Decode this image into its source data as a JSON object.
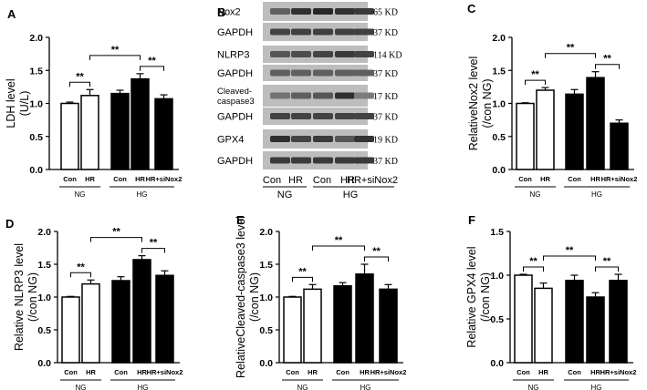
{
  "figure": {
    "panels": [
      "A",
      "B",
      "C",
      "D",
      "E",
      "F"
    ]
  },
  "blot": {
    "label": "B",
    "rows": [
      {
        "protein": "Nox2",
        "size": "65 KD",
        "intensity": [
          0.55,
          0.8,
          0.85,
          0.8,
          0.75
        ]
      },
      {
        "protein": "GAPDH",
        "size": "37 KD",
        "intensity": [
          0.7,
          0.72,
          0.72,
          0.72,
          0.72
        ]
      },
      {
        "protein": "NLRP3",
        "size": "114 KD",
        "intensity": [
          0.6,
          0.65,
          0.7,
          0.75,
          0.7
        ]
      },
      {
        "protein": "GAPDH",
        "size": "37 KD",
        "intensity": [
          0.55,
          0.55,
          0.55,
          0.55,
          0.55
        ]
      },
      {
        "protein": "Cleaved-\ncaspase3",
        "size": "17 KD",
        "intensity": [
          0.45,
          0.55,
          0.6,
          0.8,
          0.4
        ]
      },
      {
        "protein": "GAPDH",
        "size": "37 KD",
        "intensity": [
          0.7,
          0.7,
          0.7,
          0.7,
          0.7
        ]
      },
      {
        "protein": "GPX4",
        "size": "19 KD",
        "intensity": [
          0.8,
          0.7,
          0.75,
          0.6,
          0.78
        ]
      },
      {
        "protein": "GAPDH",
        "size": "37 KD",
        "intensity": [
          0.75,
          0.75,
          0.75,
          0.75,
          0.75
        ]
      }
    ],
    "lanes": [
      "Con",
      "HR",
      "Con",
      "HR",
      "HR+siNox2"
    ],
    "groups": [
      {
        "name": "NG"
      },
      {
        "name": "HG"
      }
    ]
  },
  "chart_data": [
    {
      "panel": "A",
      "type": "bar",
      "categories": [
        "Con",
        "HR",
        "Con",
        "HR",
        "HR+siNox2"
      ],
      "groups": [
        "NG",
        "HG"
      ],
      "values": [
        1.0,
        1.12,
        1.15,
        1.37,
        1.07
      ],
      "errors": [
        0.02,
        0.09,
        0.05,
        0.08,
        0.06
      ],
      "fill": [
        "#ffffff",
        "#ffffff",
        "#000000",
        "#000000",
        "#000000"
      ],
      "ylabel": "LDH level\n(U/L)",
      "ylim": [
        0,
        2.0
      ],
      "yticks": [
        "0.0",
        "0.5",
        "1.0",
        "1.5",
        "2.0"
      ],
      "significance": [
        {
          "from": 0,
          "to": 1,
          "label": "**"
        },
        {
          "from": 1,
          "to": 3,
          "label": "**"
        },
        {
          "from": 3,
          "to": 4,
          "label": "**"
        }
      ]
    },
    {
      "panel": "C",
      "type": "bar",
      "categories": [
        "Con",
        "HR",
        "Con",
        "HR",
        "HR+siNox2"
      ],
      "groups": [
        "NG",
        "HG"
      ],
      "values": [
        1.0,
        1.2,
        1.14,
        1.39,
        0.7
      ],
      "errors": [
        0.01,
        0.04,
        0.07,
        0.09,
        0.05
      ],
      "fill": [
        "#ffffff",
        "#ffffff",
        "#000000",
        "#000000",
        "#000000"
      ],
      "ylabel": "RelativeNox2 level\n(/con NG)",
      "ylim": [
        0,
        2.0
      ],
      "yticks": [
        "0.0",
        "0.5",
        "1.0",
        "1.5",
        "2.0"
      ],
      "significance": [
        {
          "from": 0,
          "to": 1,
          "label": "**"
        },
        {
          "from": 1,
          "to": 3,
          "label": "**"
        },
        {
          "from": 3,
          "to": 4,
          "label": "**"
        }
      ]
    },
    {
      "panel": "D",
      "type": "bar",
      "categories": [
        "Con",
        "HR",
        "Con",
        "HR",
        "HR+siNox2"
      ],
      "groups": [
        "NG",
        "HG"
      ],
      "values": [
        1.0,
        1.2,
        1.25,
        1.57,
        1.33
      ],
      "errors": [
        0.01,
        0.06,
        0.06,
        0.06,
        0.07
      ],
      "fill": [
        "#ffffff",
        "#ffffff",
        "#000000",
        "#000000",
        "#000000"
      ],
      "ylabel": "Relative NLRP3 level\n(/con NG)",
      "ylim": [
        0,
        2.0
      ],
      "yticks": [
        "0.0",
        "0.5",
        "1.0",
        "1.5",
        "2.0"
      ],
      "significance": [
        {
          "from": 0,
          "to": 1,
          "label": "**"
        },
        {
          "from": 1,
          "to": 3,
          "label": "**"
        },
        {
          "from": 3,
          "to": 4,
          "label": "**"
        }
      ]
    },
    {
      "panel": "E",
      "type": "bar",
      "categories": [
        "Con",
        "HR",
        "Con",
        "HR",
        "HR+siNox2"
      ],
      "groups": [
        "NG",
        "HG"
      ],
      "values": [
        1.0,
        1.12,
        1.17,
        1.35,
        1.12
      ],
      "errors": [
        0.01,
        0.07,
        0.05,
        0.15,
        0.07
      ],
      "fill": [
        "#ffffff",
        "#ffffff",
        "#000000",
        "#000000",
        "#000000"
      ],
      "ylabel": "RelativeCleaved-caspase3 level\n(/con NG)",
      "ylim": [
        0,
        2.0
      ],
      "yticks": [
        "0.0",
        "0.5",
        "1.0",
        "1.5",
        "2.0"
      ],
      "significance": [
        {
          "from": 0,
          "to": 1,
          "label": "**"
        },
        {
          "from": 1,
          "to": 3,
          "label": "**"
        },
        {
          "from": 3,
          "to": 4,
          "label": "**"
        }
      ]
    },
    {
      "panel": "F",
      "type": "bar",
      "categories": [
        "Con",
        "HR",
        "Con",
        "HR",
        "HR+siNox2"
      ],
      "groups": [
        "NG",
        "HG"
      ],
      "values": [
        1.0,
        0.85,
        0.94,
        0.75,
        0.94
      ],
      "errors": [
        0.01,
        0.06,
        0.06,
        0.05,
        0.07
      ],
      "fill": [
        "#ffffff",
        "#ffffff",
        "#000000",
        "#000000",
        "#000000"
      ],
      "ylabel": "Relative GPX4 level\n(/con NG)",
      "ylim": [
        0,
        1.5
      ],
      "yticks": [
        "0.0",
        "0.5",
        "1.0",
        "1.5"
      ],
      "significance": [
        {
          "from": 0,
          "to": 1,
          "label": "**"
        },
        {
          "from": 1,
          "to": 3,
          "label": "**"
        },
        {
          "from": 3,
          "to": 4,
          "label": "**"
        }
      ]
    }
  ]
}
